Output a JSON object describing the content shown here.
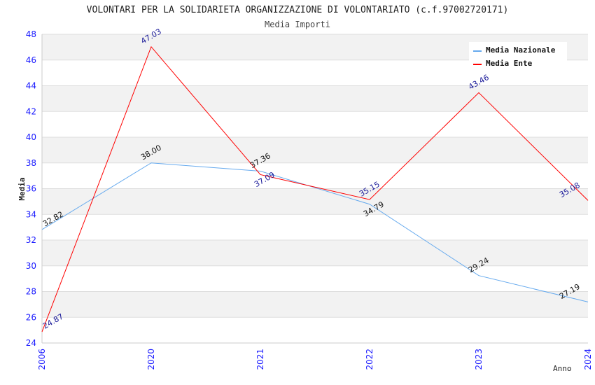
{
  "chart_data": {
    "type": "line",
    "title": "VOLONTARI PER LA SOLIDARIETA ORGANIZZAZIONE DI VOLONTARIATO (c.f.97002720171)",
    "subtitle": "Media Importi",
    "xlabel": "Anno",
    "ylabel": "Media",
    "ylim": [
      24,
      48
    ],
    "yticks": [
      24,
      26,
      28,
      30,
      32,
      34,
      36,
      38,
      40,
      42,
      44,
      46,
      48
    ],
    "categories": [
      "2006",
      "2020",
      "2021",
      "2022",
      "2023",
      "2024"
    ],
    "legend_position": "top-right",
    "grid": true,
    "series": [
      {
        "name": "Media Nazionale",
        "color": "#66aaee",
        "label_color": "#111111",
        "values": [
          32.82,
          38.0,
          37.36,
          34.79,
          29.24,
          27.19
        ],
        "labels": [
          "32.82",
          "38.00",
          "37.36",
          "34.79",
          "29.24",
          "27.19"
        ]
      },
      {
        "name": "Media Ente",
        "color": "#ff0000",
        "label_color": "#1a1a99",
        "values": [
          24.87,
          47.03,
          37.09,
          35.15,
          43.46,
          35.08
        ],
        "labels": [
          "24.87",
          "47.03",
          "37.09",
          "35.15",
          "43.46",
          "35.08"
        ]
      }
    ]
  }
}
